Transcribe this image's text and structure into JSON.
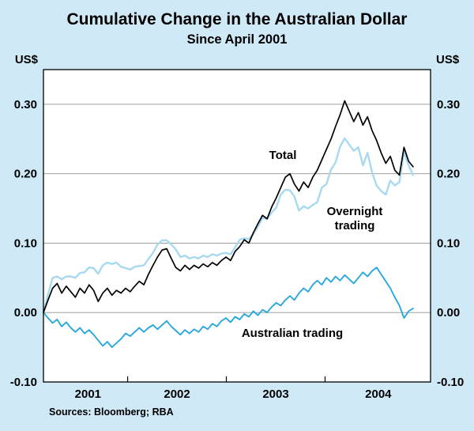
{
  "title": "Cumulative Change in the Australian Dollar",
  "subtitle": "Since April 2001",
  "sources": "Sources: Bloomberg; RBA",
  "colors": {
    "background": "#cfe9f6",
    "plot_bg": "#ffffff",
    "grid": "#a0a0a0",
    "frame": "#000000",
    "total": "#000000",
    "overnight": "#a7d9f0",
    "australian": "#2aa8dd"
  },
  "chart_data": {
    "type": "line",
    "title": "Cumulative Change in the Australian Dollar",
    "subtitle": "Since April 2001",
    "xlabel": "",
    "ylabel": "US$",
    "unit_left": "US$",
    "unit_right": "US$",
    "ylim": [
      -0.1,
      0.35
    ],
    "yticks": [
      -0.1,
      0.0,
      0.1,
      0.2,
      0.3
    ],
    "ytick_labels": [
      "-0.10",
      "0.00",
      "0.10",
      "0.20",
      "0.30"
    ],
    "gridlines": [
      0.0,
      0.1,
      0.2,
      0.3
    ],
    "grid_on": true,
    "legend_position": "inline-annotations",
    "x_tick_labels": [
      {
        "label": "2001",
        "pos": 0.115
      },
      {
        "label": "2002",
        "pos": 0.345
      },
      {
        "label": "2003",
        "pos": 0.6
      },
      {
        "label": "2004",
        "pos": 0.865
      }
    ],
    "x_year_boundaries": [
      0.2175,
      0.4725,
      0.7275
    ],
    "x_start_fraction": 0.0,
    "x_end_fraction": 0.955,
    "draw_order": [
      1,
      2,
      0
    ],
    "series": [
      {
        "name": "Total",
        "key": "total",
        "label": "Total",
        "width": 1.7,
        "values": [
          0.0,
          0.018,
          0.035,
          0.042,
          0.028,
          0.038,
          0.03,
          0.022,
          0.035,
          0.028,
          0.04,
          0.032,
          0.016,
          0.028,
          0.035,
          0.025,
          0.032,
          0.028,
          0.035,
          0.03,
          0.038,
          0.045,
          0.04,
          0.055,
          0.068,
          0.08,
          0.09,
          0.092,
          0.078,
          0.065,
          0.06,
          0.068,
          0.062,
          0.068,
          0.064,
          0.07,
          0.066,
          0.072,
          0.068,
          0.075,
          0.08,
          0.075,
          0.088,
          0.095,
          0.105,
          0.1,
          0.115,
          0.128,
          0.14,
          0.135,
          0.152,
          0.165,
          0.18,
          0.195,
          0.2,
          0.185,
          0.175,
          0.188,
          0.18,
          0.195,
          0.205,
          0.22,
          0.235,
          0.25,
          0.268,
          0.285,
          0.305,
          0.29,
          0.275,
          0.288,
          0.27,
          0.282,
          0.262,
          0.248,
          0.23,
          0.215,
          0.225,
          0.205,
          0.198,
          0.238,
          0.218,
          0.21
        ]
      },
      {
        "name": "Overnight trading",
        "key": "overnight",
        "label": "Overnight trading",
        "label_lines": [
          "Overnight",
          "trading"
        ],
        "width": 2.4,
        "values": [
          0.0,
          0.026,
          0.05,
          0.052,
          0.048,
          0.052,
          0.052,
          0.05,
          0.057,
          0.058,
          0.065,
          0.064,
          0.056,
          0.068,
          0.072,
          0.07,
          0.072,
          0.066,
          0.064,
          0.062,
          0.066,
          0.067,
          0.068,
          0.077,
          0.086,
          0.098,
          0.104,
          0.104,
          0.098,
          0.091,
          0.08,
          0.082,
          0.078,
          0.08,
          0.078,
          0.082,
          0.08,
          0.084,
          0.082,
          0.085,
          0.086,
          0.084,
          0.094,
          0.105,
          0.107,
          0.106,
          0.113,
          0.124,
          0.136,
          0.135,
          0.144,
          0.151,
          0.17,
          0.177,
          0.176,
          0.167,
          0.147,
          0.153,
          0.15,
          0.155,
          0.159,
          0.18,
          0.185,
          0.206,
          0.216,
          0.239,
          0.251,
          0.242,
          0.233,
          0.238,
          0.212,
          0.23,
          0.202,
          0.183,
          0.175,
          0.17,
          0.19,
          0.183,
          0.188,
          0.232,
          0.212,
          0.198
        ]
      },
      {
        "name": "Australian trading",
        "key": "australian",
        "label": "Australian trading",
        "width": 1.9,
        "values": [
          0.0,
          -0.008,
          -0.015,
          -0.01,
          -0.02,
          -0.014,
          -0.022,
          -0.028,
          -0.022,
          -0.03,
          -0.025,
          -0.032,
          -0.04,
          -0.048,
          -0.042,
          -0.05,
          -0.044,
          -0.038,
          -0.03,
          -0.034,
          -0.028,
          -0.022,
          -0.028,
          -0.022,
          -0.018,
          -0.024,
          -0.018,
          -0.012,
          -0.02,
          -0.026,
          -0.032,
          -0.025,
          -0.03,
          -0.024,
          -0.028,
          -0.02,
          -0.024,
          -0.016,
          -0.02,
          -0.012,
          -0.008,
          -0.014,
          -0.006,
          -0.01,
          -0.002,
          -0.006,
          0.002,
          -0.004,
          0.004,
          0.0,
          0.008,
          0.014,
          0.01,
          0.018,
          0.024,
          0.018,
          0.028,
          0.035,
          0.03,
          0.04,
          0.046,
          0.04,
          0.05,
          0.044,
          0.052,
          0.046,
          0.054,
          0.048,
          0.042,
          0.05,
          0.058,
          0.052,
          0.06,
          0.065,
          0.055,
          0.045,
          0.035,
          0.022,
          0.01,
          -0.008,
          0.002,
          0.006
        ]
      }
    ]
  }
}
